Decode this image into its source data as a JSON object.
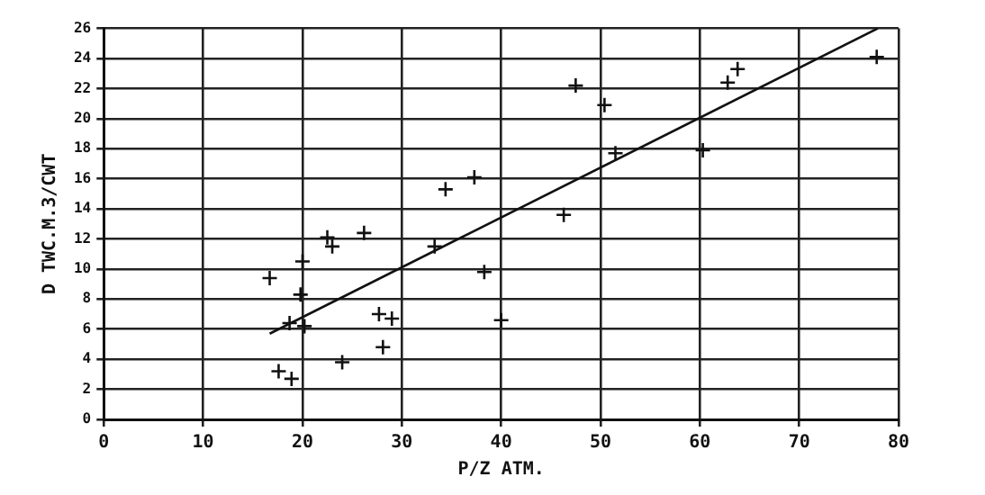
{
  "chart_data": {
    "type": "scatter",
    "xlabel": "P/Z ATM.",
    "ylabel": "D TWC.M.3/CWT",
    "xlim": [
      0,
      80
    ],
    "ylim": [
      0,
      26
    ],
    "xticks": [
      0,
      10,
      20,
      30,
      40,
      50,
      60,
      70,
      80
    ],
    "yticks": [
      0,
      2,
      4,
      6,
      8,
      10,
      12,
      14,
      16,
      18,
      20,
      22,
      24,
      26
    ],
    "grid": true,
    "legend": false,
    "series": [
      {
        "marker": "cross",
        "color": "#111111",
        "x": [
          16.7,
          17.6,
          18.9,
          18.7,
          20.0,
          19.8,
          20.2,
          22.5,
          23.0,
          26.2,
          24.0,
          27.7,
          29.0,
          28.1,
          33.3,
          34.4,
          37.3,
          38.3,
          40.0,
          46.3,
          47.5,
          50.4,
          51.5,
          60.3,
          62.8,
          63.8,
          77.8
        ],
        "values": [
          9.4,
          3.2,
          2.7,
          6.4,
          10.5,
          8.3,
          6.2,
          12.1,
          11.5,
          12.4,
          3.8,
          7.0,
          6.7,
          4.8,
          11.5,
          15.3,
          16.1,
          9.8,
          6.6,
          13.6,
          22.2,
          20.9,
          17.7,
          17.9,
          22.4,
          23.3,
          24.1
        ]
      },
      {
        "type": "line",
        "color": "#111111",
        "x": [
          16.7,
          77.9
        ],
        "values": [
          5.7,
          26
        ]
      }
    ]
  }
}
